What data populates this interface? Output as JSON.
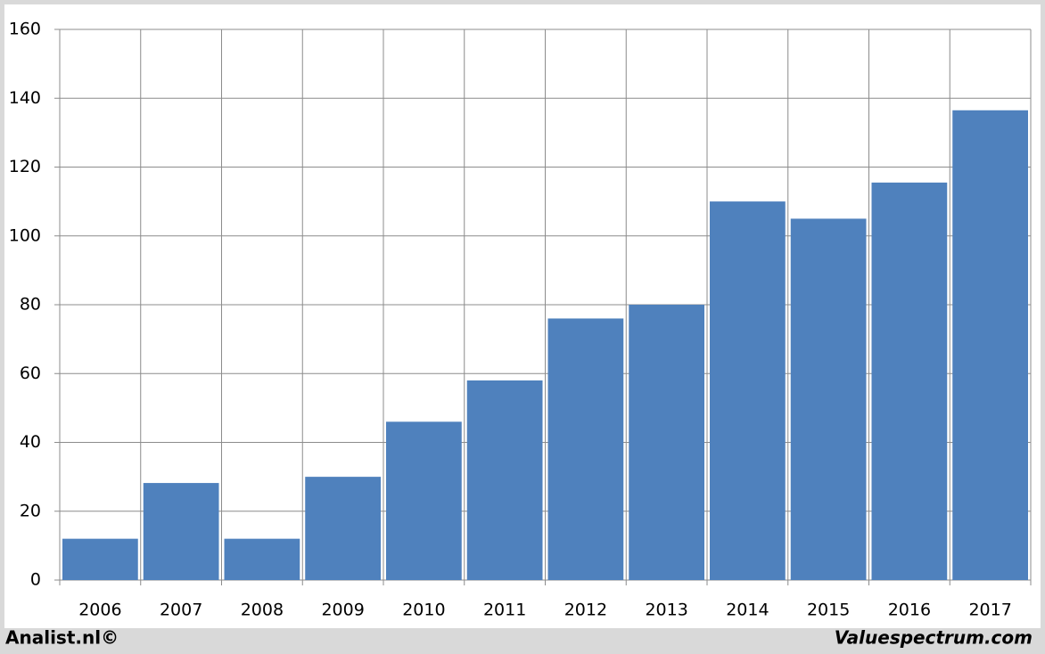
{
  "chart_data": {
    "type": "bar",
    "categories": [
      "2006",
      "2007",
      "2008",
      "2009",
      "2010",
      "2011",
      "2012",
      "2013",
      "2014",
      "2015",
      "2016",
      "2017"
    ],
    "values": [
      12,
      28.2,
      12,
      30,
      46,
      58,
      76,
      80,
      110,
      105,
      115.5,
      136.5
    ],
    "color": "#4f81bd",
    "ylim": [
      0,
      160
    ],
    "yticks": [
      0,
      20,
      40,
      60,
      80,
      100,
      120,
      140,
      160
    ],
    "grid": true,
    "credits": [
      "Analist.nl©",
      "Valuespectrum.com"
    ]
  }
}
